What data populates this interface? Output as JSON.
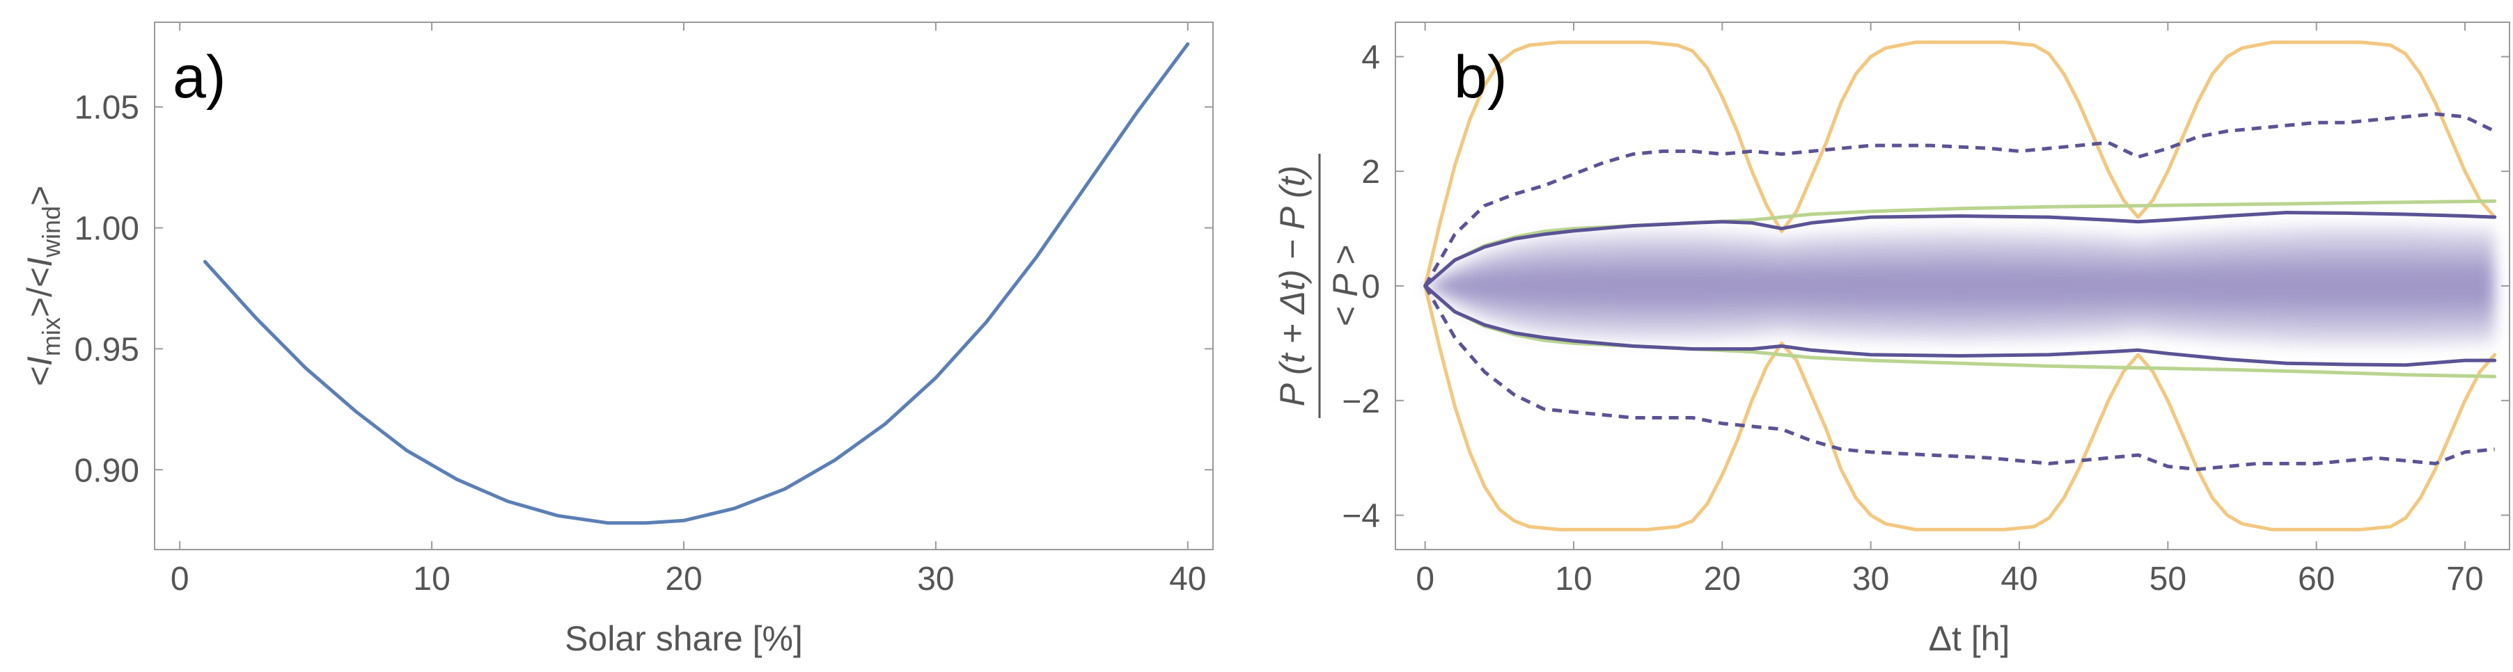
{
  "chart_data": [
    {
      "type": "line",
      "panel_label": "a)",
      "xlabel": "Solar share [%]",
      "ylabel": "<I_mix>/<I_wind>",
      "ylabel_parts": [
        "<",
        "I",
        "mix",
        ">/<",
        "I",
        "wind",
        ">"
      ],
      "xlim": [
        -1,
        41
      ],
      "ylim": [
        0.867,
        1.085
      ],
      "xticks": [
        0,
        10,
        20,
        30,
        40
      ],
      "xtick_labels": [
        "0",
        "10",
        "20",
        "30",
        "40"
      ],
      "yticks": [
        0.9,
        0.95,
        1.0,
        1.05
      ],
      "ytick_labels": [
        "0.90",
        "0.95",
        "1.00",
        "1.05"
      ],
      "series": [
        {
          "name": "ratio",
          "color": "#5b7fb5",
          "x": [
            1,
            3,
            5,
            7,
            9,
            11,
            13,
            15,
            17,
            18.5,
            20,
            22,
            24,
            26,
            28,
            30,
            32,
            34,
            36,
            38,
            40
          ],
          "y": [
            0.986,
            0.963,
            0.942,
            0.924,
            0.908,
            0.896,
            0.887,
            0.881,
            0.878,
            0.878,
            0.879,
            0.884,
            0.892,
            0.904,
            0.919,
            0.938,
            0.961,
            0.988,
            1.018,
            1.048,
            1.076
          ]
        }
      ]
    },
    {
      "type": "line",
      "panel_label": "b)",
      "xlabel": "Δt [h]",
      "ylabel_numerator": "P (t + Δt) − P (t)",
      "ylabel_denominator": "< P >",
      "xlim": [
        -2,
        73
      ],
      "ylim": [
        -4.6,
        4.6
      ],
      "xticks": [
        0,
        10,
        20,
        30,
        40,
        50,
        60,
        70
      ],
      "xtick_labels": [
        "0",
        "10",
        "20",
        "30",
        "40",
        "50",
        "60",
        "70"
      ],
      "yticks": [
        -4,
        -2,
        0,
        2,
        4
      ],
      "ytick_labels": [
        "−4",
        "−2",
        "0",
        "2",
        "4"
      ],
      "density": {
        "color": "#6a5aa8",
        "x": [
          0,
          2,
          4,
          6,
          8,
          10,
          14,
          18,
          22,
          24,
          26,
          30,
          36,
          42,
          46,
          48,
          50,
          54,
          60,
          66,
          72
        ],
        "half_width": [
          0.0,
          0.35,
          0.6,
          0.75,
          0.85,
          0.9,
          0.95,
          0.95,
          0.9,
          0.85,
          0.9,
          0.95,
          0.98,
          0.95,
          0.9,
          0.85,
          0.9,
          0.98,
          1.05,
          1.05,
          1.0
        ]
      },
      "series": [
        {
          "name": "solar envelope (upper)",
          "color": "#f3c77f",
          "style": "solid",
          "x": [
            0,
            1,
            2,
            3,
            4,
            5,
            6,
            7,
            9,
            12,
            15,
            17,
            18,
            19,
            20,
            21,
            22,
            23,
            24,
            25,
            26,
            27,
            28,
            29,
            30,
            31,
            33,
            36,
            39,
            41,
            42,
            43,
            44,
            45,
            46,
            47,
            48,
            49,
            50,
            51,
            52,
            53,
            54,
            55,
            57,
            60,
            63,
            65,
            66,
            67,
            68,
            69,
            70,
            71,
            72
          ],
          "y": [
            0,
            1.1,
            2.1,
            2.9,
            3.5,
            3.9,
            4.1,
            4.2,
            4.25,
            4.25,
            4.25,
            4.2,
            4.1,
            3.8,
            3.3,
            2.7,
            2.0,
            1.4,
            0.95,
            1.3,
            1.9,
            2.5,
            3.2,
            3.7,
            4.0,
            4.15,
            4.25,
            4.25,
            4.25,
            4.2,
            4.05,
            3.7,
            3.2,
            2.6,
            2.0,
            1.5,
            1.2,
            1.5,
            2.0,
            2.6,
            3.2,
            3.7,
            4.0,
            4.15,
            4.25,
            4.25,
            4.25,
            4.2,
            4.05,
            3.7,
            3.2,
            2.6,
            2.0,
            1.5,
            1.2
          ]
        },
        {
          "name": "solar envelope (lower)",
          "color": "#f3c77f",
          "style": "solid",
          "x": [
            0,
            1,
            2,
            3,
            4,
            5,
            6,
            7,
            9,
            12,
            15,
            17,
            18,
            19,
            20,
            21,
            22,
            23,
            24,
            25,
            26,
            27,
            28,
            29,
            30,
            31,
            33,
            36,
            39,
            41,
            42,
            43,
            44,
            45,
            46,
            47,
            48,
            49,
            50,
            51,
            52,
            53,
            54,
            55,
            57,
            60,
            63,
            65,
            66,
            67,
            68,
            69,
            70,
            71,
            72
          ],
          "y": [
            0,
            -1.1,
            -2.1,
            -2.9,
            -3.5,
            -3.9,
            -4.1,
            -4.2,
            -4.25,
            -4.25,
            -4.25,
            -4.2,
            -4.1,
            -3.8,
            -3.3,
            -2.7,
            -2.0,
            -1.4,
            -1.0,
            -1.3,
            -1.9,
            -2.5,
            -3.2,
            -3.7,
            -4.0,
            -4.15,
            -4.25,
            -4.25,
            -4.25,
            -4.2,
            -4.05,
            -3.7,
            -3.2,
            -2.6,
            -2.0,
            -1.5,
            -1.2,
            -1.5,
            -2.0,
            -2.6,
            -3.2,
            -3.7,
            -4.0,
            -4.15,
            -4.25,
            -4.25,
            -4.25,
            -4.2,
            -4.05,
            -3.7,
            -3.2,
            -2.6,
            -2.0,
            -1.5,
            -1.2
          ]
        },
        {
          "name": "wind envelope (upper)",
          "color": "#b9d48f",
          "style": "solid",
          "x": [
            0,
            2,
            4,
            6,
            8,
            10,
            14,
            18,
            22,
            26,
            30,
            36,
            42,
            48,
            54,
            60,
            66,
            72
          ],
          "y": [
            0,
            0.45,
            0.7,
            0.85,
            0.95,
            1.0,
            1.05,
            1.1,
            1.15,
            1.25,
            1.3,
            1.35,
            1.38,
            1.4,
            1.42,
            1.44,
            1.46,
            1.48
          ]
        },
        {
          "name": "wind envelope (lower)",
          "color": "#b9d48f",
          "style": "solid",
          "x": [
            0,
            2,
            4,
            6,
            8,
            10,
            14,
            18,
            22,
            26,
            30,
            36,
            42,
            48,
            54,
            60,
            66,
            72
          ],
          "y": [
            0,
            -0.45,
            -0.7,
            -0.85,
            -0.95,
            -1.0,
            -1.05,
            -1.1,
            -1.15,
            -1.25,
            -1.3,
            -1.35,
            -1.4,
            -1.43,
            -1.46,
            -1.5,
            -1.55,
            -1.58
          ]
        },
        {
          "name": "mix quantile (upper)",
          "color": "#5a5395",
          "style": "solid",
          "x": [
            0,
            2,
            4,
            6,
            8,
            10,
            14,
            18,
            20,
            22,
            24,
            26,
            30,
            36,
            42,
            46,
            48,
            50,
            54,
            58,
            62,
            66,
            70,
            72
          ],
          "y": [
            0,
            0.45,
            0.68,
            0.82,
            0.9,
            0.96,
            1.05,
            1.1,
            1.12,
            1.1,
            1.0,
            1.1,
            1.2,
            1.22,
            1.2,
            1.15,
            1.12,
            1.15,
            1.22,
            1.28,
            1.27,
            1.25,
            1.22,
            1.2
          ]
        },
        {
          "name": "mix quantile (lower)",
          "color": "#5a5395",
          "style": "solid",
          "x": [
            0,
            2,
            4,
            6,
            8,
            10,
            14,
            18,
            20,
            22,
            24,
            26,
            30,
            36,
            42,
            46,
            48,
            50,
            54,
            58,
            62,
            66,
            70,
            72
          ],
          "y": [
            0,
            -0.45,
            -0.68,
            -0.82,
            -0.9,
            -0.96,
            -1.05,
            -1.1,
            -1.1,
            -1.1,
            -1.05,
            -1.12,
            -1.2,
            -1.22,
            -1.2,
            -1.15,
            -1.12,
            -1.18,
            -1.28,
            -1.35,
            -1.37,
            -1.38,
            -1.3,
            -1.3
          ]
        },
        {
          "name": "mix extreme quantile (upper)",
          "color": "#5a5395",
          "style": "dashed",
          "x": [
            0,
            2,
            4,
            6,
            8,
            10,
            12,
            14,
            16,
            18,
            20,
            22,
            24,
            26,
            28,
            30,
            34,
            38,
            40,
            42,
            44,
            46,
            48,
            50,
            52,
            54,
            56,
            58,
            60,
            62,
            64,
            66,
            68,
            70,
            72
          ],
          "y": [
            0,
            0.9,
            1.4,
            1.6,
            1.75,
            1.95,
            2.15,
            2.3,
            2.35,
            2.35,
            2.3,
            2.35,
            2.3,
            2.35,
            2.4,
            2.45,
            2.45,
            2.4,
            2.35,
            2.4,
            2.45,
            2.5,
            2.25,
            2.4,
            2.6,
            2.7,
            2.75,
            2.8,
            2.85,
            2.85,
            2.9,
            2.95,
            3.0,
            2.95,
            2.7
          ]
        },
        {
          "name": "mix extreme quantile (lower)",
          "color": "#5a5395",
          "style": "dashed",
          "x": [
            0,
            2,
            4,
            6,
            8,
            10,
            12,
            14,
            16,
            18,
            20,
            22,
            24,
            26,
            28,
            30,
            34,
            38,
            40,
            42,
            44,
            46,
            48,
            50,
            52,
            54,
            56,
            58,
            60,
            62,
            64,
            66,
            68,
            70,
            72
          ],
          "y": [
            0,
            -0.9,
            -1.5,
            -1.9,
            -2.15,
            -2.2,
            -2.25,
            -2.3,
            -2.3,
            -2.3,
            -2.4,
            -2.45,
            -2.5,
            -2.7,
            -2.85,
            -2.9,
            -2.95,
            -3.0,
            -3.05,
            -3.1,
            -3.05,
            -3.0,
            -2.95,
            -3.15,
            -3.2,
            -3.15,
            -3.1,
            -3.1,
            -3.1,
            -3.05,
            -3.0,
            -3.05,
            -3.1,
            -2.9,
            -2.85
          ]
        }
      ]
    }
  ]
}
